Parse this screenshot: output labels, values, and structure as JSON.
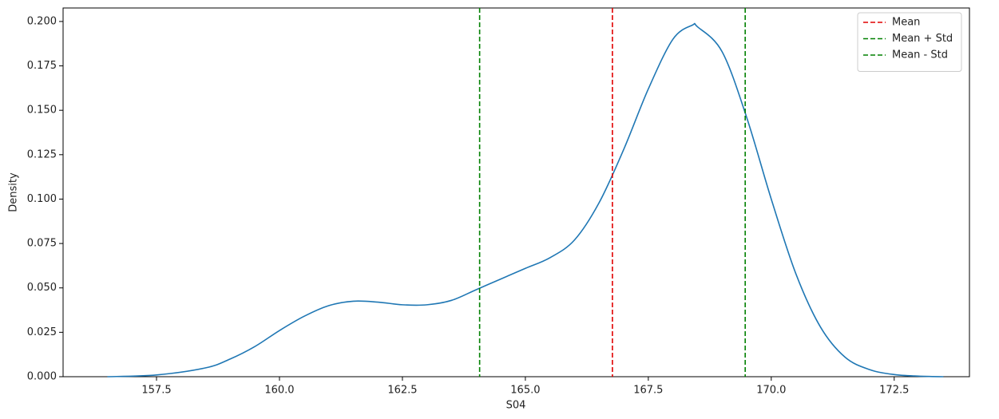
{
  "chart_data": {
    "type": "line",
    "xlabel": "S04",
    "ylabel": "Density",
    "x": [
      156.5,
      157.5,
      158.5,
      159.0,
      159.5,
      160.0,
      160.5,
      161.0,
      161.5,
      162.0,
      162.5,
      163.0,
      163.5,
      164.0,
      164.5,
      165.0,
      165.5,
      166.0,
      166.5,
      167.0,
      167.5,
      168.0,
      168.4,
      168.5,
      169.0,
      169.5,
      170.0,
      170.5,
      171.0,
      171.5,
      172.0,
      172.5,
      173.0,
      173.5
    ],
    "series": [
      {
        "color": "#1f77b4",
        "values": [
          0,
          0.001,
          0.005,
          0.01,
          0.017,
          0.026,
          0.034,
          0.04,
          0.0425,
          0.042,
          0.0405,
          0.0405,
          0.043,
          0.049,
          0.055,
          0.061,
          0.067,
          0.077,
          0.098,
          0.128,
          0.162,
          0.19,
          0.198,
          0.197,
          0.183,
          0.146,
          0.1,
          0.058,
          0.028,
          0.011,
          0.004,
          0.0012,
          0.0003,
          0
        ]
      }
    ],
    "vlines": [
      {
        "name": "Mean",
        "color": "#e00000",
        "x": 166.77
      },
      {
        "name": "Mean + Std",
        "color": "#008000",
        "x": 169.47
      },
      {
        "name": "Mean - Std",
        "color": "#008000",
        "x": 164.07
      }
    ],
    "xlim": [
      155.6,
      174.03
    ],
    "ylim": [
      0,
      0.2076
    ],
    "xticks": [
      157.5,
      {
        "value": 160,
        "label": "160.0"
      },
      162.5,
      {
        "value": 165,
        "label": "165.0"
      },
      167.5,
      {
        "value": 170,
        "label": "170.0"
      },
      172.5
    ],
    "yticks": [
      {
        "value": 0,
        "label": "0.000"
      },
      0.025,
      {
        "value": 0.05,
        "label": "0.050"
      },
      0.075,
      {
        "value": 0.1,
        "label": "0.100"
      },
      0.125,
      {
        "value": 0.15,
        "label": "0.150"
      },
      0.175,
      {
        "value": 0.2,
        "label": "0.200"
      }
    ],
    "legend": "upper right"
  }
}
